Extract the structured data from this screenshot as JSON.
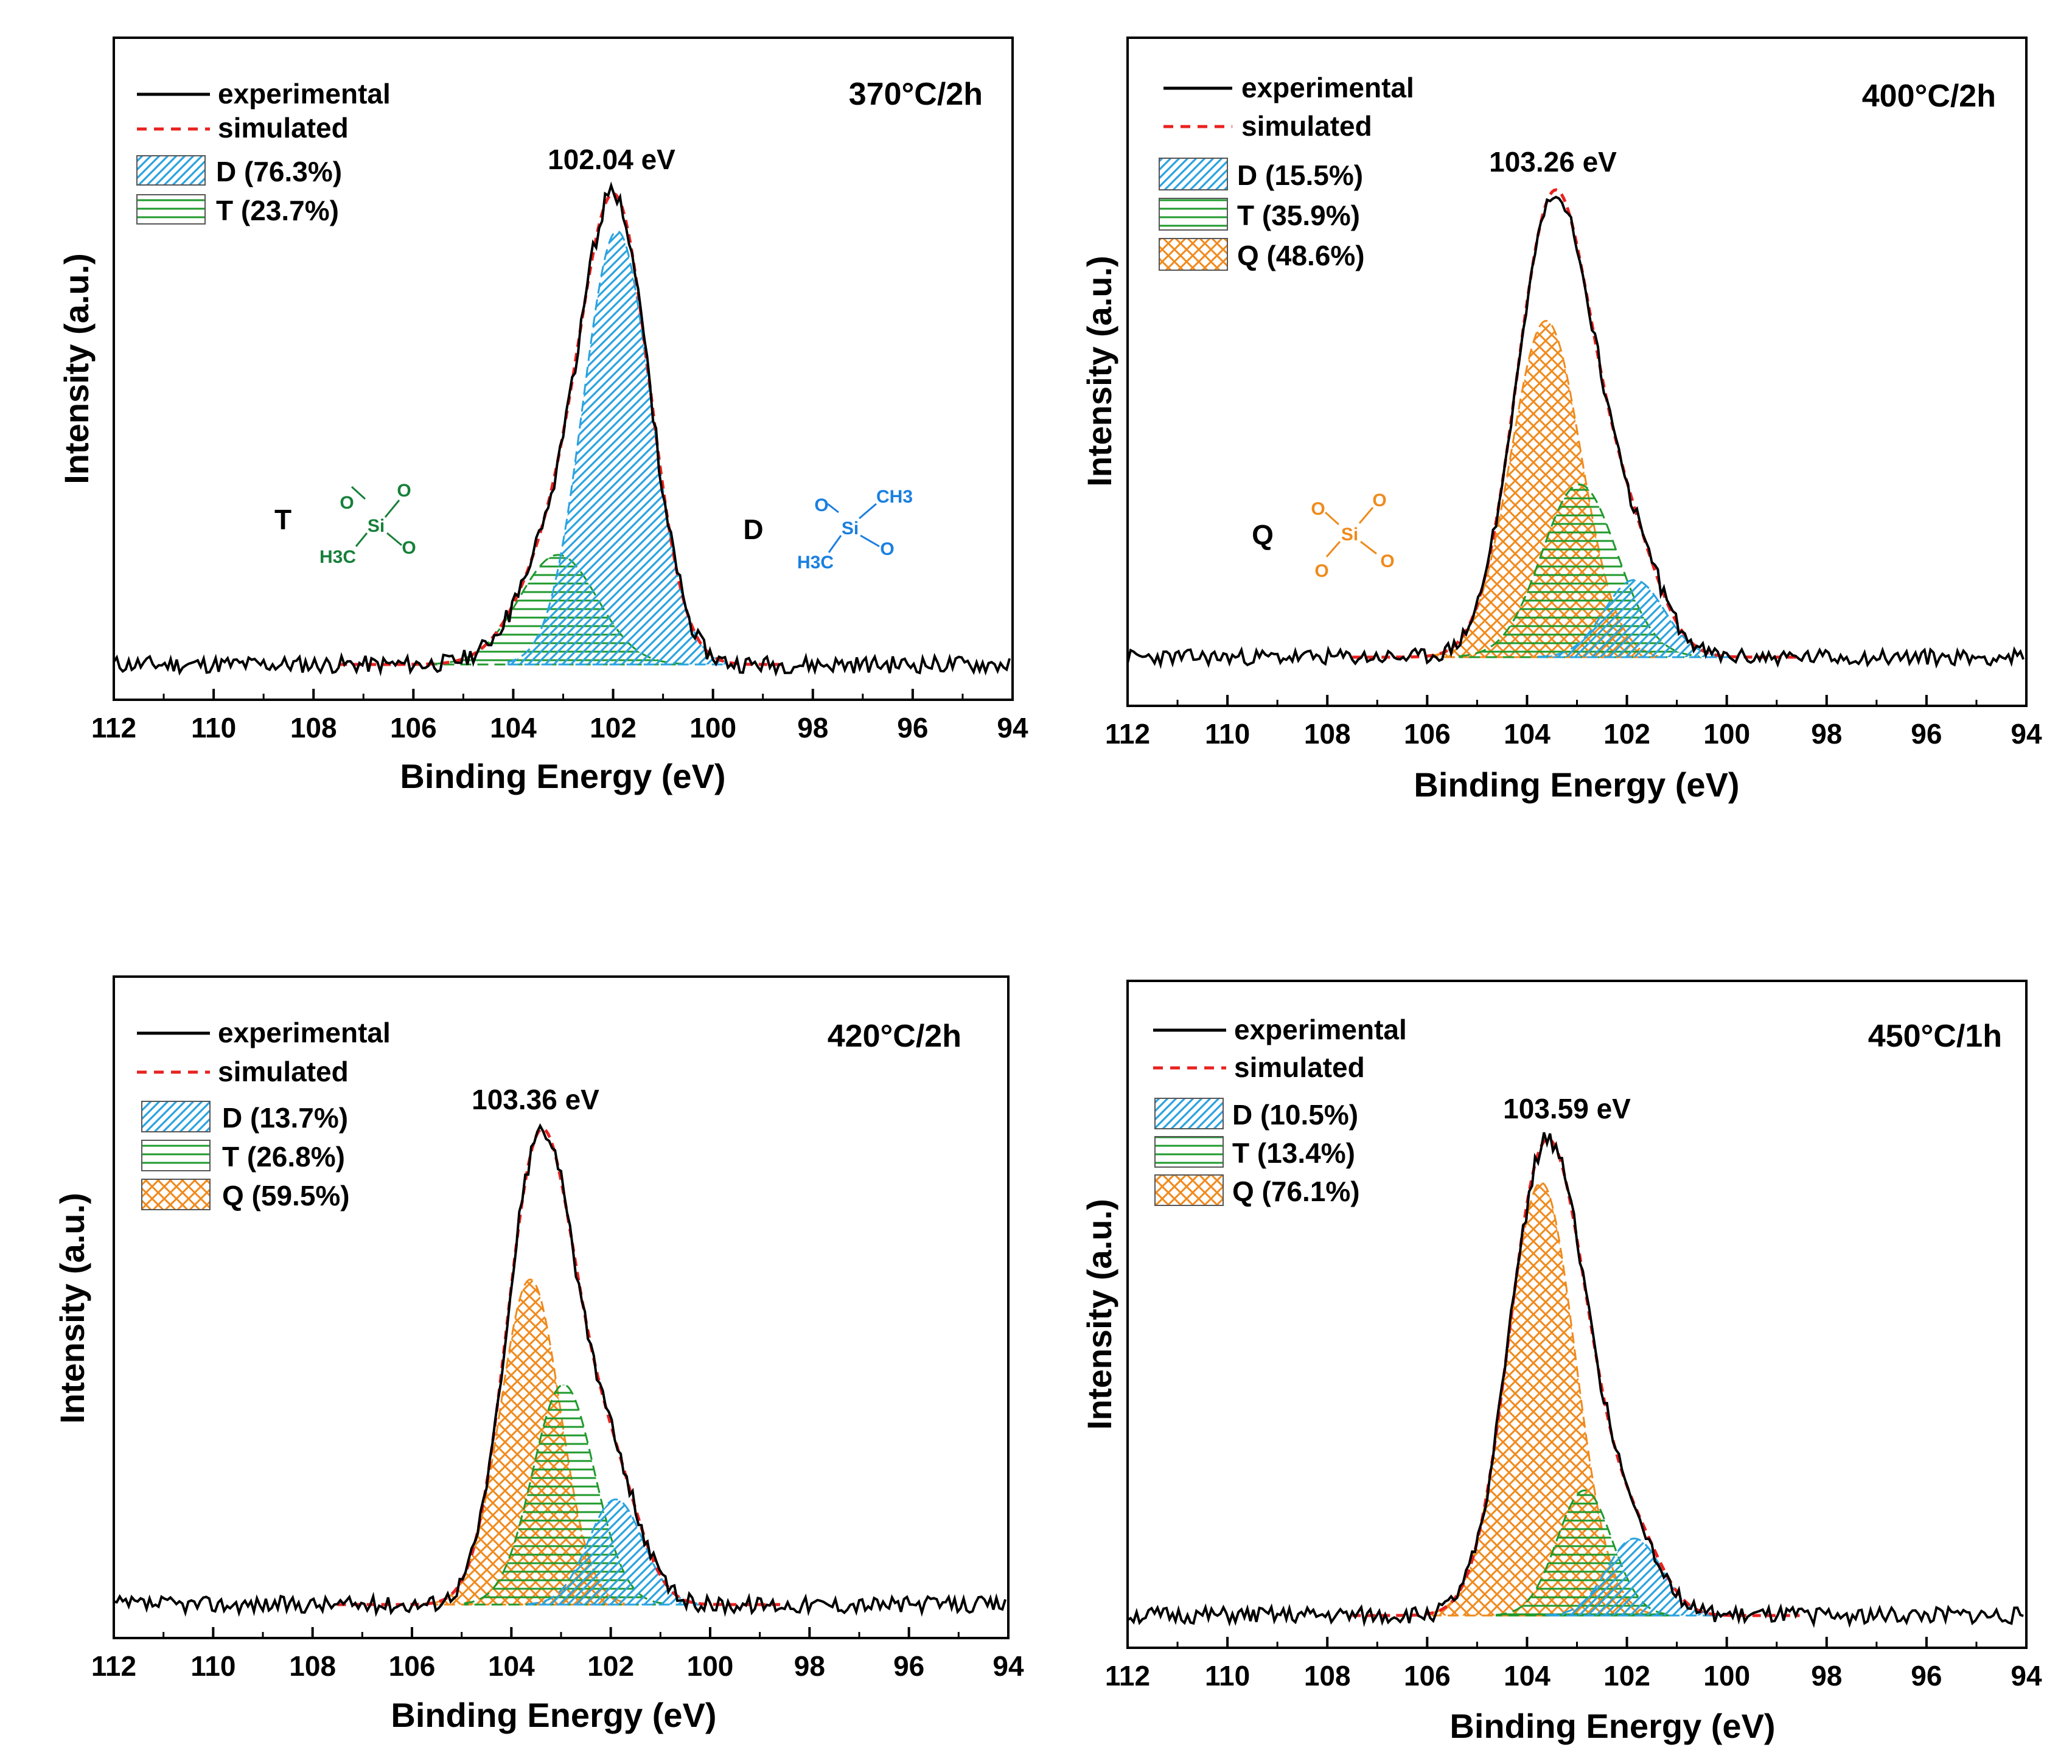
{
  "colors": {
    "experimental": "#000000",
    "simulated": "#e8221f",
    "D": "#2aa3e0",
    "T": "#1f9a2c",
    "Q": "#f08a1c",
    "T_structure": "#17803a",
    "D_structure": "#1a7fe0"
  },
  "chart_data": [
    {
      "type": "line",
      "id": "a",
      "condition": "370°C/2h",
      "peak_label": "102.04 eV",
      "xlabel": "Binding Energy (eV)",
      "ylabel": "Intensity (a.u.)",
      "xlim": [
        112,
        94
      ],
      "ylim": [
        0,
        1.1
      ],
      "xticks": [
        "112",
        "110",
        "108",
        "106",
        "104",
        "102",
        "100",
        "98",
        "96",
        "94"
      ],
      "legend": {
        "experimental": "experimental",
        "simulated": "simulated"
      },
      "components": [
        {
          "key": "D",
          "label": "D (76.3%)",
          "center": 101.92,
          "sigma": 0.68,
          "height": 0.87
        },
        {
          "key": "T",
          "label": "T (23.7%)",
          "center": 103.1,
          "sigma": 0.78,
          "height": 0.22
        }
      ],
      "structures": [
        {
          "letter": "T",
          "color_key": "T_structure",
          "groups": [
            "O",
            "O",
            "O",
            "H3C"
          ]
        },
        {
          "letter": "D",
          "color_key": "D_structure",
          "groups": [
            "O",
            "CH3",
            "O",
            "H3C"
          ]
        }
      ]
    },
    {
      "type": "line",
      "id": "b",
      "condition": "400°C/2h",
      "peak_label": "103.26 eV",
      "xlabel": "Binding Energy (eV)",
      "ylabel": "Intensity (a.u.)",
      "xlim": [
        112,
        94
      ],
      "ylim": [
        0,
        1.1
      ],
      "xticks": [
        "112",
        "110",
        "108",
        "106",
        "104",
        "102",
        "100",
        "98",
        "96",
        "94"
      ],
      "legend": {
        "experimental": "experimental",
        "simulated": "simulated"
      },
      "components": [
        {
          "key": "D",
          "label": "D (15.5%)",
          "center": 101.85,
          "sigma": 0.6,
          "height": 0.17
        },
        {
          "key": "T",
          "label": "T (35.9%)",
          "center": 102.95,
          "sigma": 0.75,
          "height": 0.38
        },
        {
          "key": "Q",
          "label": "Q (48.6%)",
          "center": 103.62,
          "sigma": 0.7,
          "height": 0.74
        }
      ],
      "structures": [
        {
          "letter": "Q",
          "color_key": "Q",
          "groups": [
            "O",
            "O",
            "O",
            "O"
          ]
        }
      ]
    },
    {
      "type": "line",
      "id": "c",
      "condition": "420°C/2h",
      "peak_label": "103.36 eV",
      "xlabel": "Binding Energy (eV)",
      "ylabel": "Intensity (a.u.)",
      "xlim": [
        112,
        94
      ],
      "ylim": [
        0,
        1.1
      ],
      "xticks": [
        "112",
        "110",
        "108",
        "106",
        "104",
        "102",
        "100",
        "98",
        "96",
        "94"
      ],
      "legend": {
        "experimental": "experimental",
        "simulated": "simulated"
      },
      "components": [
        {
          "key": "D",
          "label": "D (13.7%)",
          "center": 101.9,
          "sigma": 0.55,
          "height": 0.22
        },
        {
          "key": "T",
          "label": "T (26.8%)",
          "center": 102.95,
          "sigma": 0.62,
          "height": 0.46
        },
        {
          "key": "Q",
          "label": "Q (59.5%)",
          "center": 103.62,
          "sigma": 0.6,
          "height": 0.68
        }
      ],
      "structures": []
    },
    {
      "type": "line",
      "id": "d",
      "condition": "450°C/1h",
      "peak_label": "103.59 eV",
      "xlabel": "Binding Energy (eV)",
      "ylabel": "Intensity (a.u.)",
      "xlim": [
        112,
        94
      ],
      "ylim": [
        0,
        1.1
      ],
      "xticks": [
        "112",
        "110",
        "108",
        "106",
        "104",
        "102",
        "100",
        "98",
        "96",
        "94"
      ],
      "legend": {
        "experimental": "experimental",
        "simulated": "simulated"
      },
      "components": [
        {
          "key": "D",
          "label": "D (10.5%)",
          "center": 101.85,
          "sigma": 0.55,
          "height": 0.16
        },
        {
          "key": "T",
          "label": "T (13.4%)",
          "center": 102.85,
          "sigma": 0.55,
          "height": 0.26
        },
        {
          "key": "Q",
          "label": "Q (76.1%)",
          "center": 103.72,
          "sigma": 0.68,
          "height": 0.9
        }
      ],
      "structures": []
    }
  ]
}
